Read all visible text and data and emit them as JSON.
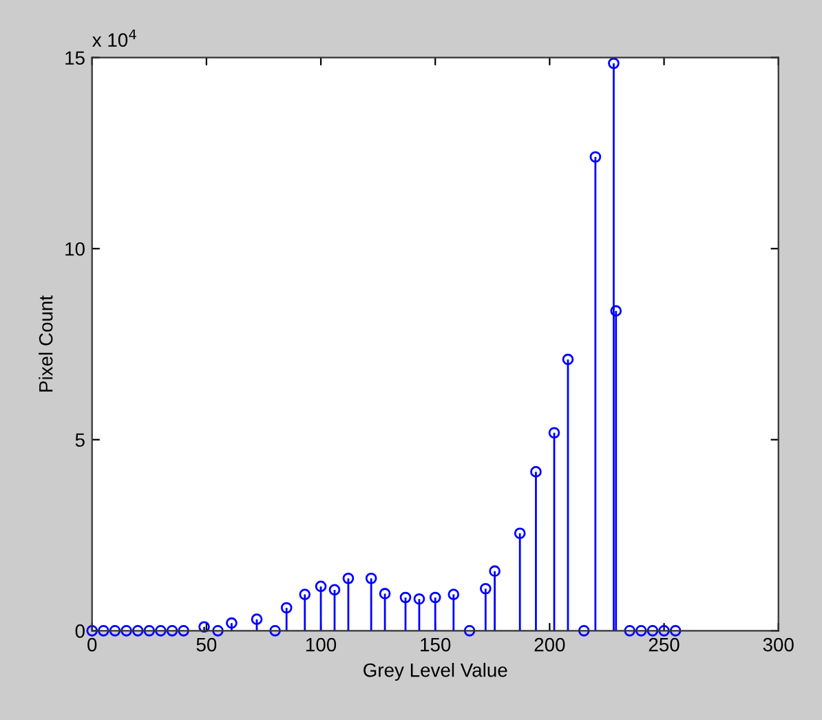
{
  "chart_data": {
    "type": "lollipop",
    "xlabel": "Grey Level Value",
    "ylabel": "Pixel Count",
    "annotations": [
      "x 10$^{4}$"
    ],
    "x": [
      0,
      5,
      10,
      15,
      20,
      25,
      30,
      35,
      40,
      49,
      55,
      61,
      72,
      80,
      85,
      93,
      100,
      106,
      112,
      122,
      128,
      137,
      143,
      150,
      158,
      165,
      172,
      176,
      187,
      194,
      202,
      208,
      215,
      220,
      228,
      229,
      235,
      240,
      245,
      250,
      255
    ],
    "series": [
      {
        "color": "#0000ff",
        "values": [
          0,
          0,
          0,
          0,
          0,
          0,
          0,
          0,
          0,
          0.1,
          0,
          0.2,
          0.3,
          0,
          0.6,
          0.95,
          1.16,
          1.07,
          1.37,
          1.37,
          0.97,
          0.87,
          0.83,
          0.87,
          0.95,
          0,
          1.1,
          1.56,
          2.55,
          4.16,
          5.18,
          7.1,
          0,
          12.4,
          14.85,
          8.37,
          0,
          0,
          0,
          0,
          0
        ]
      }
    ],
    "xlim": [
      0,
      300
    ],
    "xticks": [
      0,
      50,
      100,
      150,
      200,
      250,
      300
    ],
    "ylim": [
      0,
      15
    ],
    "yticks": [
      0,
      5,
      10,
      15
    ],
    "marker": "circle",
    "grid": false
  }
}
